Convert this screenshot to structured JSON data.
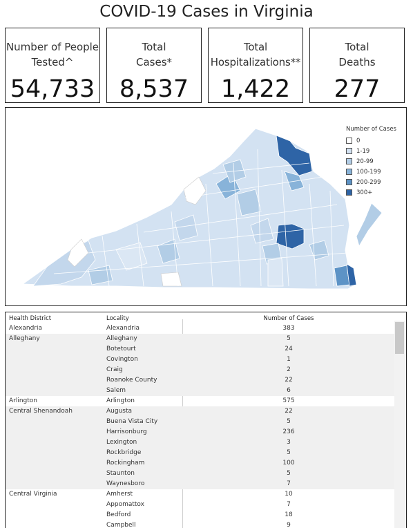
{
  "page": {
    "title": "COVID-19 Cases in Virginia"
  },
  "kpis": [
    {
      "label": "Number of People Tested^",
      "value": "54,733"
    },
    {
      "label": "Total Cases*",
      "value": "8,537"
    },
    {
      "label": "Total Hospitalizations**",
      "value": "1,422"
    },
    {
      "label": "Total Deaths",
      "value": "277"
    }
  ],
  "map": {
    "legend_title": "Number of Cases",
    "legend": [
      {
        "label": "0",
        "color": "#ffffff"
      },
      {
        "label": "1-19",
        "color": "#d3e2f2"
      },
      {
        "label": "20-99",
        "color": "#b2cde6"
      },
      {
        "label": "100-199",
        "color": "#88b3d9"
      },
      {
        "label": "200-299",
        "color": "#5d93c6"
      },
      {
        "label": "300+",
        "color": "#2e64a6"
      }
    ]
  },
  "table": {
    "headers": [
      "Health District",
      "Locality",
      "Number of Cases"
    ],
    "groups": [
      {
        "district": "Alexandria",
        "rows": [
          {
            "locality": "Alexandria",
            "cases": "383"
          }
        ]
      },
      {
        "district": "Alleghany",
        "rows": [
          {
            "locality": "Alleghany",
            "cases": "5"
          },
          {
            "locality": "Botetourt",
            "cases": "24"
          },
          {
            "locality": "Covington",
            "cases": "1"
          },
          {
            "locality": "Craig",
            "cases": "2"
          },
          {
            "locality": "Roanoke County",
            "cases": "22"
          },
          {
            "locality": "Salem",
            "cases": "6"
          }
        ]
      },
      {
        "district": "Arlington",
        "rows": [
          {
            "locality": "Arlington",
            "cases": "575"
          }
        ]
      },
      {
        "district": "Central Shenandoah",
        "rows": [
          {
            "locality": "Augusta",
            "cases": "22"
          },
          {
            "locality": "Buena Vista City",
            "cases": "5"
          },
          {
            "locality": "Harrisonburg",
            "cases": "236"
          },
          {
            "locality": "Lexington",
            "cases": "3"
          },
          {
            "locality": "Rockbridge",
            "cases": "5"
          },
          {
            "locality": "Rockingham",
            "cases": "100"
          },
          {
            "locality": "Staunton",
            "cases": "5"
          },
          {
            "locality": "Waynesboro",
            "cases": "7"
          }
        ]
      },
      {
        "district": "Central Virginia",
        "rows": [
          {
            "locality": "Amherst",
            "cases": "10"
          },
          {
            "locality": "Appomattox",
            "cases": "7"
          },
          {
            "locality": "Bedford",
            "cases": "18"
          },
          {
            "locality": "Campbell",
            "cases": "9"
          }
        ]
      }
    ]
  }
}
